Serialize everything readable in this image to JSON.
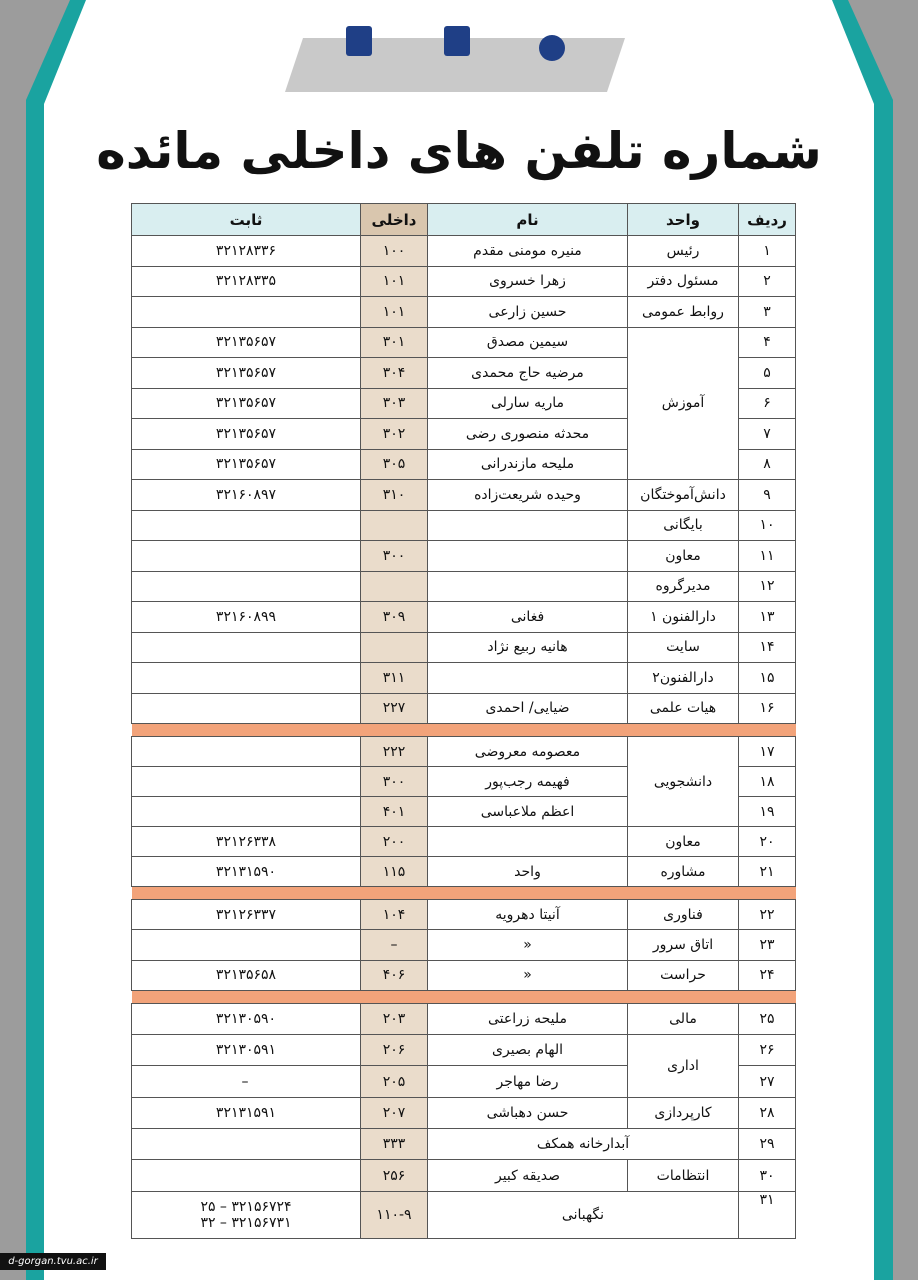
{
  "title": "شماره تلفن های داخلی مائده",
  "footer": "d-gorgan.tvu.ac.ir",
  "table": {
    "header": [
      "ردیف",
      "واحد",
      "نام",
      "داخلی",
      "ثابت"
    ],
    "sections": [
      [
        [
          "۱",
          "رئیس",
          "منیره مومنی مقدم",
          "۱۰۰",
          "۳۲۱۲۸۳۳۶"
        ],
        [
          "۲",
          "مسئول دفتر",
          "زهرا خسروی",
          "۱۰۱",
          "۳۲۱۲۸۳۳۵"
        ],
        [
          "۳",
          "روابط عمومی",
          "حسین زارعی",
          "۱۰۱",
          null
        ],
        [
          "۴",
          "آموزش",
          "سیمین مصدق",
          "۳۰۱",
          "۳۲۱۳۵۶۵۷"
        ],
        [
          "۵",
          null,
          "مرضیه حاج محمدی",
          "۳۰۴",
          "۳۲۱۳۵۶۵۷"
        ],
        [
          "۶",
          null,
          "ماریه سارلی",
          "۳۰۳",
          "۳۲۱۳۵۶۵۷"
        ],
        [
          "۷",
          null,
          "محدثه منصوری رضی",
          "۳۰۲",
          "۳۲۱۳۵۶۵۷"
        ],
        [
          "۸",
          null,
          "ملیحه مازندرانی",
          "۳۰۵",
          "۳۲۱۳۵۶۵۷"
        ],
        [
          "۹",
          "دانش‌آموختگان",
          "وحیده شریعت‌زاده",
          "۳۱۰",
          "۳۲۱۶۰۸۹۷"
        ],
        [
          "۱۰",
          "بایگانی",
          null,
          null,
          null
        ],
        [
          "۱۱",
          "معاون",
          null,
          "۳۰۰",
          null
        ],
        [
          "۱۲",
          "مدیرگروه",
          null,
          null,
          null
        ],
        [
          "۱۳",
          "دارالفنون ۱",
          "فغانی",
          "۳۰۹",
          "۳۲۱۶۰۸۹۹"
        ],
        [
          "۱۴",
          "سایت",
          "هانیه ربیع نژاد",
          null,
          null
        ],
        [
          "۱۵",
          "دارالفنون۲",
          null,
          "۳۱۱",
          null
        ],
        [
          "۱۶",
          "هیات علمی",
          "ضیایی/ احمدی",
          "۲۲۷",
          null
        ]
      ],
      [
        [
          "۱۷",
          "دانشجویی",
          "معصومه معروضی",
          "۲۲۲",
          null
        ],
        [
          "۱۸",
          null,
          "فهیمه رجب‌پور",
          "۳۰۰",
          null
        ],
        [
          "۱۹",
          null,
          "اعظم ملاعباسی",
          "۴۰۱",
          null
        ],
        [
          "۲۰",
          "معاون",
          null,
          "۲۰۰",
          "۳۲۱۲۶۳۳۸"
        ],
        [
          "۲۱",
          "مشاوره",
          "واحد",
          "۱۱۵",
          "۳۲۱۳۱۵۹۰"
        ]
      ],
      [
        [
          "۲۲",
          "فناوری",
          "آنیتا دهرویه",
          "۱۰۴",
          "۳۲۱۲۶۳۳۷"
        ],
        [
          "۲۳",
          "اتاق سرور",
          "«",
          "–",
          null
        ],
        [
          "۲۴",
          "حراست",
          "«",
          "۴۰۶",
          "۳۲۱۳۵۶۵۸"
        ]
      ],
      [
        [
          "۲۵",
          "مالی",
          "ملیحه زراعتی",
          "۲۰۳",
          "۳۲۱۳۰۵۹۰"
        ],
        [
          "۲۶",
          "اداری",
          "الهام بصیری",
          "۲۰۶",
          "۳۲۱۳۰۵۹۱"
        ],
        [
          "۲۷",
          null,
          "رضا مهاجر",
          "۲۰۵",
          "–"
        ],
        [
          "۲۸",
          "کارپردازی",
          "حسن دهباشی",
          "۲۰۷",
          "۳۲۱۳۱۵۹۱"
        ],
        [
          "۲۹",
          null,
          "آبدارخانه همکف",
          "۳۳۳",
          null
        ],
        [
          "۳۰",
          "انتظامات",
          "صدیقه کبیر",
          "۲۵۶",
          null
        ],
        [
          "۳۱",
          null,
          "نگهبانی",
          "۱۱۰-۹",
          [
            "۳۲۱۵۶۷۲۴ – ۲۵",
            "۳۲۱۵۶۷۳۱ – ۳۲"
          ]
        ]
      ]
    ]
  }
}
